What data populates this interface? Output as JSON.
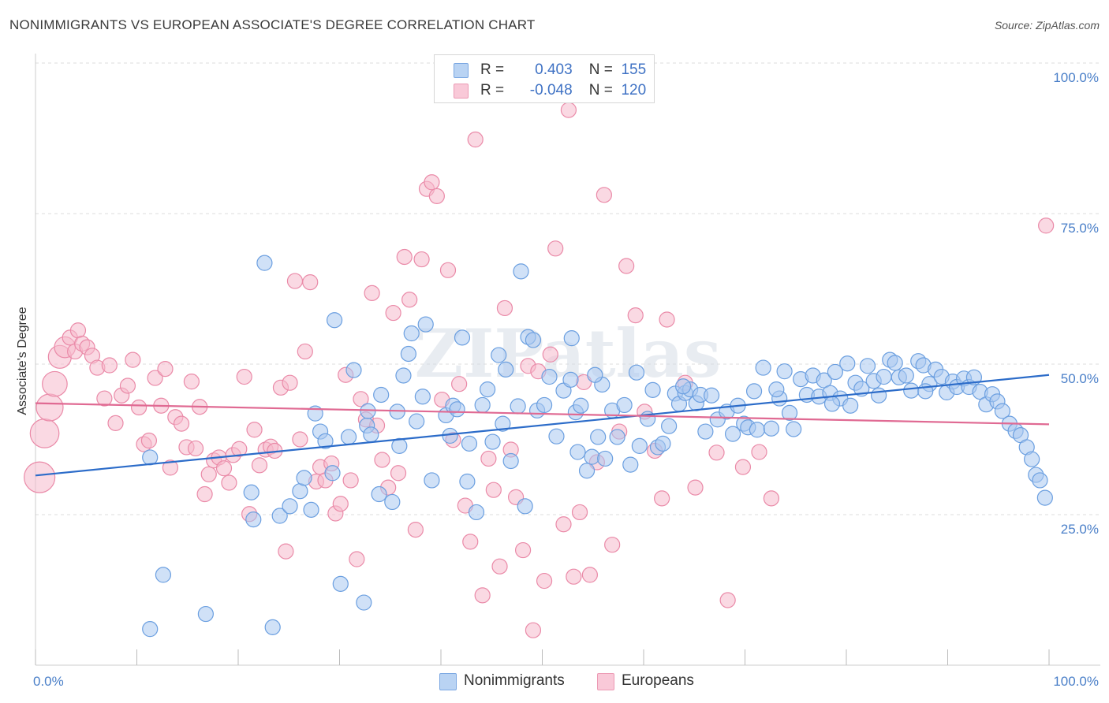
{
  "title": "NONIMMIGRANTS VS EUROPEAN ASSOCIATE'S DEGREE CORRELATION CHART",
  "source": "Source: ZipAtlas.com",
  "watermark": "ZIPatlas",
  "colors": {
    "blue_fill": "#a9c8f0",
    "blue_stroke": "#6b9fe0",
    "blue_line": "#2c6cc9",
    "pink_fill": "#f5b9cc",
    "pink_stroke": "#ea8aa8",
    "pink_line": "#e06a93",
    "tick_text": "#4a7fc8",
    "grid": "#dddddd"
  },
  "legend": {
    "rows": [
      {
        "r_label": "R =",
        "r_value": "0.403",
        "n_label": "N =",
        "n_value": "155"
      },
      {
        "r_label": "R =",
        "r_value": "-0.048",
        "n_label": "N =",
        "n_value": "120"
      }
    ]
  },
  "bottom_legend": [
    "Nonimmigrants",
    "Europeans"
  ],
  "chart_data": {
    "type": "scatter",
    "title": "NONIMMIGRANTS VS EUROPEAN ASSOCIATE'S DEGREE CORRELATION CHART",
    "xlabel": "",
    "ylabel": "Associate's Degree",
    "xlim": [
      0,
      100
    ],
    "ylim": [
      0,
      105
    ],
    "x_tick_labels": [
      "0.0%",
      "100.0%"
    ],
    "y_ticks": [
      25,
      50,
      75,
      100
    ],
    "y_tick_labels": [
      "25.0%",
      "50.0%",
      "75.0%",
      "100.0%"
    ],
    "grid": "horizontal dashed",
    "legend_position": "top-center",
    "series": [
      {
        "name": "Nonimmigrants",
        "r": 0.403,
        "n": 155,
        "trend": {
          "x": [
            0,
            100
          ],
          "y": [
            31.5,
            48.2
          ]
        },
        "points": [
          [
            11.3,
            6
          ],
          [
            16.8,
            8.5
          ],
          [
            23.4,
            6.3
          ],
          [
            12.6,
            15
          ],
          [
            30.1,
            13.5
          ],
          [
            32.4,
            10.4
          ],
          [
            11.3,
            34.5
          ],
          [
            21.3,
            28.7
          ],
          [
            21.5,
            24.2
          ],
          [
            24.1,
            24.8
          ],
          [
            25.1,
            26.4
          ],
          [
            26.1,
            28.9
          ],
          [
            26.5,
            31.1
          ],
          [
            27.2,
            25.8
          ],
          [
            27.6,
            41.8
          ],
          [
            28.1,
            38.8
          ],
          [
            28.6,
            37.2
          ],
          [
            29.3,
            31.9
          ],
          [
            29.5,
            57.3
          ],
          [
            30.9,
            37.9
          ],
          [
            31.4,
            49
          ],
          [
            32.7,
            39.8
          ],
          [
            33.1,
            38.3
          ],
          [
            33.9,
            28.4
          ],
          [
            34.1,
            44.9
          ],
          [
            35.2,
            27.1
          ],
          [
            35.7,
            42.1
          ],
          [
            35.9,
            36.4
          ],
          [
            36.8,
            51.7
          ],
          [
            37.1,
            55.1
          ],
          [
            37.6,
            40.5
          ],
          [
            38.2,
            44.6
          ],
          [
            38.5,
            56.6
          ],
          [
            39.1,
            30.7
          ],
          [
            40.5,
            41.5
          ],
          [
            40.9,
            38.1
          ],
          [
            41.2,
            43.1
          ],
          [
            41.6,
            42.5
          ],
          [
            42.1,
            54.4
          ],
          [
            42.8,
            36.8
          ],
          [
            43.5,
            25.4
          ],
          [
            44.1,
            43.2
          ],
          [
            44.6,
            45.8
          ],
          [
            45.1,
            37.1
          ],
          [
            45.7,
            51.5
          ],
          [
            46.4,
            49.1
          ],
          [
            46.9,
            33.9
          ],
          [
            47.6,
            43
          ],
          [
            47.9,
            65.4
          ],
          [
            48.6,
            54.5
          ],
          [
            49.1,
            54
          ],
          [
            49.5,
            42.3
          ],
          [
            50.2,
            43.2
          ],
          [
            50.7,
            47.9
          ],
          [
            51.4,
            38
          ],
          [
            52.1,
            45.6
          ],
          [
            52.8,
            47.4
          ],
          [
            53.3,
            42
          ],
          [
            53.8,
            43.1
          ],
          [
            54.4,
            32.3
          ],
          [
            54.9,
            34.6
          ],
          [
            55.5,
            37.9
          ],
          [
            55.9,
            46.6
          ],
          [
            56.2,
            34.3
          ],
          [
            56.9,
            42.3
          ],
          [
            57.4,
            37.9
          ],
          [
            58.1,
            43.2
          ],
          [
            58.7,
            33.3
          ],
          [
            59.3,
            48.6
          ],
          [
            59.6,
            36.4
          ],
          [
            60.4,
            40.9
          ],
          [
            60.9,
            45.7
          ],
          [
            61.4,
            36.2
          ],
          [
            61.9,
            36.8
          ],
          [
            62.5,
            39.7
          ],
          [
            63.1,
            45.1
          ],
          [
            63.5,
            43.4
          ],
          [
            64.1,
            45.2
          ],
          [
            64.6,
            45.8
          ],
          [
            65.2,
            43.5
          ],
          [
            65.6,
            44.9
          ],
          [
            66.1,
            38.8
          ],
          [
            66.7,
            44.8
          ],
          [
            67.3,
            40.8
          ],
          [
            68.2,
            42.1
          ],
          [
            68.8,
            38.4
          ],
          [
            69.3,
            43.1
          ],
          [
            69.9,
            40.1
          ],
          [
            70.3,
            39.5
          ],
          [
            70.9,
            45.5
          ],
          [
            71.2,
            39.1
          ],
          [
            71.8,
            49.4
          ],
          [
            72.6,
            39.3
          ],
          [
            73.4,
            44.3
          ],
          [
            73.9,
            48.8
          ],
          [
            74.4,
            41.9
          ],
          [
            74.8,
            39.2
          ],
          [
            75.5,
            47.5
          ],
          [
            76.1,
            44.9
          ],
          [
            76.7,
            48.1
          ],
          [
            77.3,
            44.6
          ],
          [
            77.8,
            47.3
          ],
          [
            78.4,
            45.2
          ],
          [
            78.9,
            48.7
          ],
          [
            79.4,
            44.3
          ],
          [
            80.1,
            50.1
          ],
          [
            80.4,
            43.1
          ],
          [
            80.9,
            46.9
          ],
          [
            81.5,
            45.9
          ],
          [
            82.1,
            49.7
          ],
          [
            82.7,
            47.2
          ],
          [
            83.2,
            44.8
          ],
          [
            83.7,
            47.9
          ],
          [
            84.3,
            50.7
          ],
          [
            84.8,
            50.2
          ],
          [
            85.2,
            47.8
          ],
          [
            85.9,
            48.1
          ],
          [
            86.4,
            45.6
          ],
          [
            87.1,
            50.5
          ],
          [
            87.6,
            49.8
          ],
          [
            88.2,
            46.7
          ],
          [
            88.8,
            49.1
          ],
          [
            89.4,
            47.9
          ],
          [
            89.9,
            45.3
          ],
          [
            90.5,
            47.1
          ],
          [
            90.9,
            46.2
          ],
          [
            91.6,
            47.6
          ],
          [
            92.1,
            46.2
          ],
          [
            92.6,
            47.8
          ],
          [
            93.2,
            45.4
          ],
          [
            93.8,
            43.3
          ],
          [
            94.4,
            45
          ],
          [
            94.9,
            43.8
          ],
          [
            95.4,
            42.2
          ],
          [
            96.1,
            40.1
          ],
          [
            96.7,
            38.9
          ],
          [
            97.2,
            38.2
          ],
          [
            97.8,
            36.2
          ],
          [
            98.3,
            34.2
          ],
          [
            98.7,
            31.6
          ],
          [
            99.1,
            30.7
          ],
          [
            99.6,
            27.8
          ],
          [
            36.3,
            48.1
          ],
          [
            53.5,
            35.4
          ],
          [
            22.6,
            66.8
          ],
          [
            42.6,
            30.5
          ],
          [
            32.8,
            42.2
          ],
          [
            52.9,
            54.3
          ],
          [
            46.1,
            40.1
          ],
          [
            73.1,
            45.8
          ],
          [
            63.9,
            46.3
          ],
          [
            55.2,
            48.2
          ],
          [
            78.6,
            43.4
          ],
          [
            48.3,
            26.4
          ],
          [
            87.8,
            45.5
          ]
        ]
      },
      {
        "name": "Europeans",
        "r": -0.048,
        "n": 120,
        "trend": {
          "x": [
            0,
            100
          ],
          "y": [
            43.5,
            40.0
          ]
        },
        "points": [
          [
            0.4,
            31.2
          ],
          [
            0.9,
            38.5
          ],
          [
            1.4,
            42.8
          ],
          [
            1.9,
            46.7
          ],
          [
            2.4,
            51.2
          ],
          [
            2.9,
            52.8
          ],
          [
            3.4,
            54.4
          ],
          [
            3.9,
            52.1
          ],
          [
            4.2,
            55.6
          ],
          [
            4.6,
            53.4
          ],
          [
            5.1,
            52.8
          ],
          [
            5.6,
            51.4
          ],
          [
            6.1,
            49.4
          ],
          [
            6.8,
            44.3
          ],
          [
            7.3,
            49.8
          ],
          [
            7.9,
            40.2
          ],
          [
            8.5,
            44.8
          ],
          [
            9.1,
            46.4
          ],
          [
            9.6,
            50.7
          ],
          [
            10.2,
            42.8
          ],
          [
            10.7,
            36.7
          ],
          [
            11.2,
            37.3
          ],
          [
            11.8,
            47.7
          ],
          [
            12.4,
            43.1
          ],
          [
            12.8,
            49.2
          ],
          [
            13.3,
            32.8
          ],
          [
            13.8,
            41.2
          ],
          [
            14.4,
            40.1
          ],
          [
            14.9,
            36.2
          ],
          [
            15.4,
            47.1
          ],
          [
            15.8,
            36
          ],
          [
            16.2,
            42.9
          ],
          [
            16.7,
            28.4
          ],
          [
            17.1,
            31.7
          ],
          [
            17.6,
            34
          ],
          [
            18.1,
            34.5
          ],
          [
            18.6,
            32.7
          ],
          [
            19.1,
            30.3
          ],
          [
            19.5,
            34.9
          ],
          [
            20.1,
            35.9
          ],
          [
            20.6,
            47.9
          ],
          [
            21.1,
            25.1
          ],
          [
            21.6,
            39.1
          ],
          [
            22.1,
            33.2
          ],
          [
            22.7,
            35.8
          ],
          [
            23.2,
            36.3
          ],
          [
            23.6,
            35.6
          ],
          [
            24.2,
            46.1
          ],
          [
            24.7,
            18.9
          ],
          [
            25.1,
            46.9
          ],
          [
            25.6,
            63.8
          ],
          [
            26.1,
            37.5
          ],
          [
            26.6,
            52.1
          ],
          [
            27.1,
            63.6
          ],
          [
            27.7,
            30.5
          ],
          [
            28.1,
            32.9
          ],
          [
            28.6,
            30.7
          ],
          [
            29.2,
            33.5
          ],
          [
            29.6,
            25.2
          ],
          [
            30.1,
            26.8
          ],
          [
            30.6,
            48.2
          ],
          [
            31.1,
            30.7
          ],
          [
            31.7,
            17.6
          ],
          [
            32.1,
            44.2
          ],
          [
            32.6,
            40.8
          ],
          [
            33.2,
            61.8
          ],
          [
            33.7,
            39.8
          ],
          [
            34.2,
            34.1
          ],
          [
            34.8,
            29.5
          ],
          [
            35.3,
            58.5
          ],
          [
            35.8,
            31.9
          ],
          [
            36.4,
            67.8
          ],
          [
            36.9,
            60.7
          ],
          [
            37.5,
            22.5
          ],
          [
            38.1,
            67.4
          ],
          [
            38.6,
            79.1
          ],
          [
            39.1,
            80.2
          ],
          [
            39.6,
            77.9
          ],
          [
            40.1,
            44.1
          ],
          [
            40.7,
            65.6
          ],
          [
            41.2,
            37.4
          ],
          [
            41.8,
            46.7
          ],
          [
            42.4,
            26.5
          ],
          [
            42.9,
            20.5
          ],
          [
            43.4,
            87.3
          ],
          [
            44.1,
            11.6
          ],
          [
            44.7,
            34.3
          ],
          [
            45.2,
            29.1
          ],
          [
            45.8,
            16.4
          ],
          [
            46.3,
            59.3
          ],
          [
            46.9,
            35.8
          ],
          [
            47.4,
            27.9
          ],
          [
            48.1,
            19.1
          ],
          [
            48.6,
            49.7
          ],
          [
            49.1,
            5.8
          ],
          [
            49.6,
            48.8
          ],
          [
            50.2,
            14
          ],
          [
            50.8,
            51.6
          ],
          [
            51.3,
            69.2
          ],
          [
            52.1,
            23.4
          ],
          [
            52.6,
            92.2
          ],
          [
            53.1,
            14.7
          ],
          [
            53.7,
            25.4
          ],
          [
            54.1,
            47
          ],
          [
            54.7,
            15
          ],
          [
            55.4,
            33.7
          ],
          [
            56.1,
            78.1
          ],
          [
            56.9,
            20
          ],
          [
            57.6,
            38.8
          ],
          [
            58.3,
            66.3
          ],
          [
            59.2,
            58.1
          ],
          [
            60.1,
            42.1
          ],
          [
            61.1,
            35.6
          ],
          [
            61.8,
            27.7
          ],
          [
            62.3,
            57.4
          ],
          [
            64.1,
            46.9
          ],
          [
            65.1,
            29.5
          ],
          [
            67.2,
            35.3
          ],
          [
            68.3,
            10.8
          ],
          [
            69.8,
            32.9
          ],
          [
            71.4,
            35.4
          ],
          [
            72.6,
            27.7
          ],
          [
            99.7,
            73
          ]
        ]
      }
    ]
  }
}
